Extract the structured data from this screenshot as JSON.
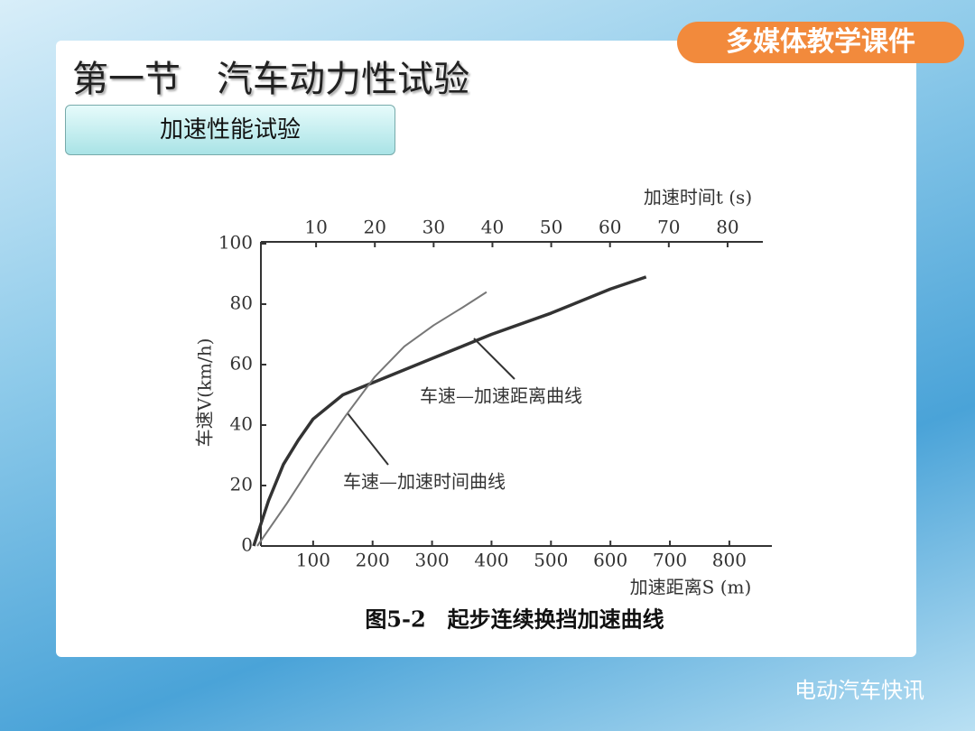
{
  "slide": {
    "title": "第一节　汽车动力性试验",
    "section": "加速性能试验",
    "badge": "多媒体教学课件",
    "watermark": "电动汽车快讯"
  },
  "chart_data": {
    "type": "line",
    "caption": "图5-2　起步连续换挡加速曲线",
    "x_label": "加速距离S (m)",
    "x2_label": "加速时间t (s)",
    "y_label": "车速V(km/h)",
    "xlim": [
      0,
      870
    ],
    "xticks": [
      100,
      200,
      300,
      400,
      500,
      600,
      700,
      800
    ],
    "x2lim": [
      0,
      86
    ],
    "x2ticks": [
      10,
      20,
      30,
      40,
      50,
      60,
      70,
      80
    ],
    "ylim": [
      0,
      100
    ],
    "yticks": [
      0,
      20,
      40,
      60,
      80,
      100
    ],
    "series": [
      {
        "name": "车速—加速距离曲线",
        "color": "#333333",
        "x": [
          0,
          25,
          50,
          75,
          100,
          150,
          200,
          300,
          400,
          500,
          600,
          660
        ],
        "values": [
          0,
          15,
          27,
          35,
          42,
          50,
          54,
          62,
          70,
          77,
          85,
          89
        ]
      },
      {
        "name": "车速—加速时间曲线",
        "color": "#777777",
        "axis": "x2",
        "x": [
          0,
          5,
          10,
          15,
          20,
          25,
          30,
          35,
          39
        ],
        "values": [
          0,
          14,
          29,
          43,
          56,
          66,
          73,
          79,
          84
        ]
      }
    ]
  }
}
